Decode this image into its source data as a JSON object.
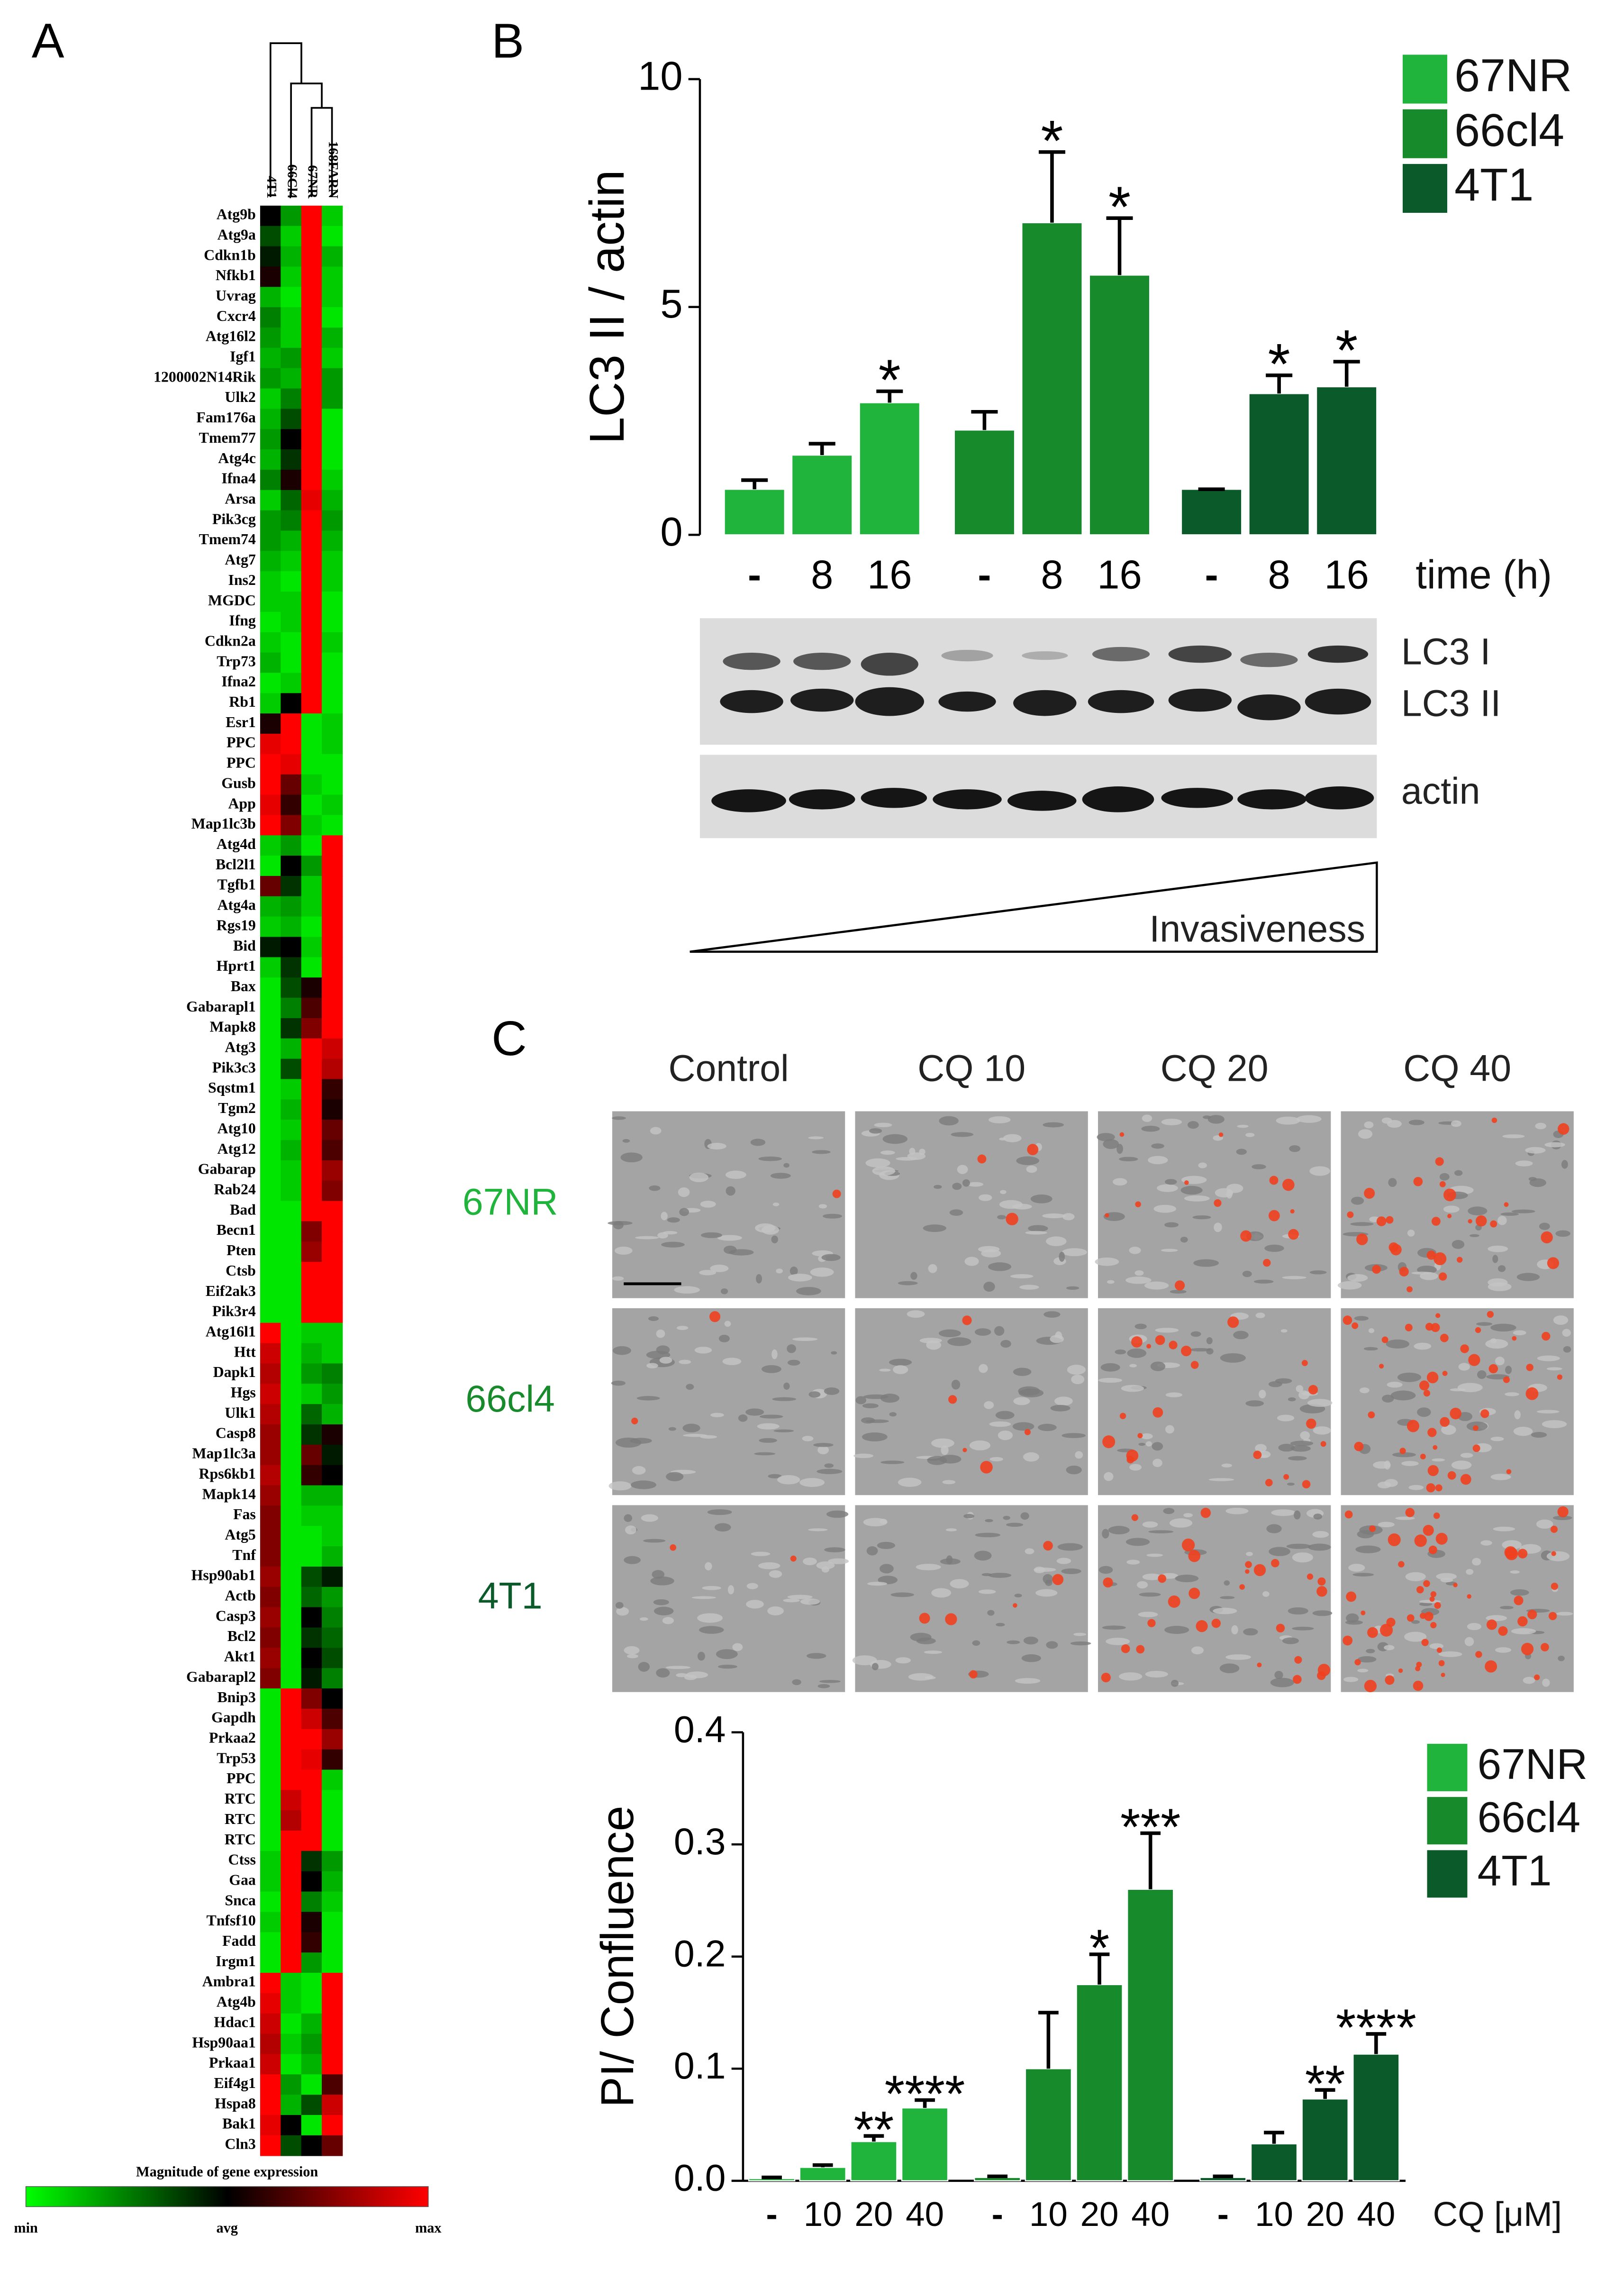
{
  "panel_labels": [
    "A",
    "B",
    "C"
  ],
  "blot": {
    "bands": [
      "LC3 I",
      "LC3 II",
      "actin"
    ],
    "gradient_label": "Invasiveness"
  },
  "micrographs": {
    "columns": [
      "Control",
      "CQ 10",
      "CQ 20",
      "CQ 40"
    ],
    "rows": [
      "67NR",
      "66cl4",
      "4T1"
    ]
  },
  "chart_data": [
    {
      "type": "heatmap",
      "colorbar_title": "Magnitude of gene expression",
      "colorbar_labels": [
        "min",
        "avg",
        "max"
      ],
      "colorscale": [
        "#00ff00",
        "#000000",
        "#ff0000"
      ],
      "zlim": [
        -1,
        1
      ],
      "columns": [
        "4T1",
        "66Cl4",
        "67NR",
        "168FARN"
      ],
      "rows": [
        "Atg9b",
        "Atg9a",
        "Cdkn1b",
        "Nfkb1",
        "Uvrag",
        "Cxcr4",
        "Atg16l2",
        "Igf1",
        "1200002N14Rik",
        "Ulk2",
        "Fam176a",
        "Tmem77",
        "Atg4c",
        "Ifna4",
        "Arsa",
        "Pik3cg",
        "Tmem74",
        "Atg7",
        "Ins2",
        "MGDC",
        "Ifng",
        "Cdkn2a",
        "Trp73",
        "Ifna2",
        "Rb1",
        "Esr1",
        "PPC",
        "PPC",
        "Gusb",
        "App",
        "Map1lc3b",
        "Atg4d",
        "Bcl2l1",
        "Tgfb1",
        "Atg4a",
        "Rgs19",
        "Bid",
        "Hprt1",
        "Bax",
        "Gabarapl1",
        "Mapk8",
        "Atg3",
        "Pik3c3",
        "Sqstm1",
        "Tgm2",
        "Atg10",
        "Atg12",
        "Gabarap",
        "Rab24",
        "Bad",
        "Becn1",
        "Pten",
        "Ctsb",
        "Eif2ak3",
        "Pik3r4",
        "Atg16l1",
        "Htt",
        "Dapk1",
        "Hgs",
        "Ulk1",
        "Casp8",
        "Map1lc3a",
        "Rps6kb1",
        "Mapk14",
        "Fas",
        "Atg5",
        "Tnf",
        "Hsp90ab1",
        "Actb",
        "Casp3",
        "Bcl2",
        "Akt1",
        "Gabarapl2",
        "Bnip3",
        "Gapdh",
        "Prkaa2",
        "Trp53",
        "PPC",
        "RTC",
        "RTC",
        "RTC",
        "Ctss",
        "Gaa",
        "Snca",
        "Tnfsf10",
        "Fadd",
        "Irgm1",
        "Ambra1",
        "Atg4b",
        "Hdac1",
        "Hsp90aa1",
        "Prkaa1",
        "Eif4g1",
        "Hspa8",
        "Bak1",
        "Cln3"
      ],
      "values": [
        [
          0,
          -0.6,
          1,
          -0.8
        ],
        [
          -0.3,
          -0.8,
          1,
          -0.9
        ],
        [
          -0.1,
          -0.7,
          1,
          -0.7
        ],
        [
          0.1,
          -0.8,
          1,
          -0.8
        ],
        [
          -0.7,
          -0.9,
          1,
          -0.8
        ],
        [
          -0.5,
          -0.8,
          1,
          -0.9
        ],
        [
          -0.6,
          -0.8,
          1,
          -0.7
        ],
        [
          -0.7,
          -0.6,
          1,
          -0.8
        ],
        [
          -0.6,
          -0.7,
          1,
          -0.6
        ],
        [
          -0.8,
          -0.5,
          1,
          -0.6
        ],
        [
          -0.7,
          -0.3,
          1,
          -0.9
        ],
        [
          -0.6,
          0,
          1,
          -0.9
        ],
        [
          -0.7,
          -0.2,
          1,
          -0.9
        ],
        [
          -0.5,
          0.1,
          1,
          -0.8
        ],
        [
          -0.8,
          -0.4,
          0.9,
          -0.7
        ],
        [
          -0.6,
          -0.5,
          1,
          -0.6
        ],
        [
          -0.6,
          -0.7,
          1,
          -0.7
        ],
        [
          -0.7,
          -0.8,
          1,
          -0.8
        ],
        [
          -0.8,
          -0.9,
          1,
          -0.8
        ],
        [
          -0.8,
          -0.8,
          1,
          -0.9
        ],
        [
          -0.9,
          -0.8,
          1,
          -0.9
        ],
        [
          -0.8,
          -0.9,
          1,
          -0.8
        ],
        [
          -0.7,
          -0.9,
          1,
          -0.9
        ],
        [
          -0.9,
          -0.8,
          1,
          -0.9
        ],
        [
          -0.8,
          0,
          1,
          -0.9
        ],
        [
          0.1,
          1,
          -0.9,
          -0.8
        ],
        [
          0.9,
          1,
          -0.9,
          -0.8
        ],
        [
          1,
          0.9,
          -0.9,
          -0.9
        ],
        [
          1,
          0.4,
          -0.8,
          -0.9
        ],
        [
          0.9,
          0.2,
          -0.9,
          -0.8
        ],
        [
          1,
          0.5,
          -0.8,
          -0.9
        ],
        [
          -0.8,
          -0.6,
          -0.9,
          1
        ],
        [
          -0.9,
          0,
          -0.6,
          1
        ],
        [
          0.4,
          -0.2,
          -0.8,
          1
        ],
        [
          -0.7,
          -0.6,
          -0.8,
          1
        ],
        [
          -0.8,
          -0.7,
          -0.9,
          1
        ],
        [
          -0.1,
          0,
          -0.8,
          1
        ],
        [
          -0.8,
          -0.2,
          -0.9,
          1
        ],
        [
          -0.9,
          -0.3,
          0.1,
          1
        ],
        [
          -0.9,
          -0.5,
          0.3,
          1
        ],
        [
          -0.9,
          -0.2,
          0.5,
          1
        ],
        [
          -0.9,
          -0.7,
          1,
          0.8
        ],
        [
          -0.9,
          -0.3,
          1,
          0.7
        ],
        [
          -0.9,
          -0.8,
          1,
          0.2
        ],
        [
          -0.9,
          -0.7,
          1,
          0.1
        ],
        [
          -0.9,
          -0.8,
          1,
          0.4
        ],
        [
          -0.9,
          -0.7,
          1,
          0.3
        ],
        [
          -0.9,
          -0.8,
          1,
          0.6
        ],
        [
          -0.9,
          -0.8,
          1,
          0.5
        ],
        [
          -0.9,
          -0.9,
          1,
          1
        ],
        [
          -0.9,
          -0.9,
          0.5,
          1
        ],
        [
          -0.9,
          -0.9,
          0.6,
          1
        ],
        [
          -0.9,
          -0.9,
          1,
          1
        ],
        [
          -0.9,
          -0.9,
          1,
          1
        ],
        [
          -0.9,
          -0.9,
          1,
          1
        ],
        [
          1,
          -0.9,
          -0.8,
          -0.8
        ],
        [
          0.8,
          -0.9,
          -0.7,
          -0.8
        ],
        [
          0.7,
          -0.9,
          -0.6,
          -0.5
        ],
        [
          0.8,
          -0.9,
          -0.8,
          -0.6
        ],
        [
          0.7,
          -0.9,
          -0.4,
          -0.7
        ],
        [
          0.6,
          -0.9,
          -0.2,
          0.1
        ],
        [
          0.6,
          -0.9,
          0.4,
          -0.1
        ],
        [
          0.7,
          -0.9,
          0.2,
          0
        ],
        [
          0.6,
          -0.9,
          -0.7,
          -0.7
        ],
        [
          0.5,
          -0.9,
          -0.8,
          -0.8
        ],
        [
          0.5,
          -0.9,
          -0.9,
          -0.8
        ],
        [
          0.5,
          -0.9,
          -0.9,
          -0.7
        ],
        [
          0.6,
          -0.9,
          -0.3,
          -0.1
        ],
        [
          0.5,
          -0.9,
          -0.4,
          -0.6
        ],
        [
          0.6,
          -0.9,
          0,
          -0.5
        ],
        [
          0.5,
          -0.9,
          -0.2,
          -0.4
        ],
        [
          0.6,
          -0.9,
          0,
          -0.3
        ],
        [
          0.5,
          -0.9,
          -0.1,
          -0.5
        ],
        [
          -0.9,
          1,
          0.5,
          0
        ],
        [
          -0.9,
          1,
          0.8,
          0.3
        ],
        [
          -0.9,
          1,
          1,
          0.6
        ],
        [
          -0.9,
          1,
          0.9,
          0.2
        ],
        [
          -0.9,
          1,
          1,
          -0.8
        ],
        [
          -0.9,
          0.8,
          1,
          -0.9
        ],
        [
          -0.9,
          0.7,
          1,
          -0.9
        ],
        [
          -0.9,
          1,
          1,
          -0.9
        ],
        [
          -0.8,
          1,
          -0.2,
          -0.6
        ],
        [
          -0.8,
          1,
          0,
          -0.7
        ],
        [
          -0.9,
          1,
          -0.5,
          -0.8
        ],
        [
          -0.8,
          1,
          0.1,
          -0.9
        ],
        [
          -0.9,
          1,
          0.2,
          -0.9
        ],
        [
          -0.9,
          1,
          -0.6,
          -0.9
        ],
        [
          1,
          -0.8,
          -0.9,
          1
        ],
        [
          0.9,
          -0.8,
          -0.9,
          1
        ],
        [
          0.8,
          -0.9,
          -0.7,
          1
        ],
        [
          0.7,
          -0.8,
          -0.6,
          1
        ],
        [
          0.8,
          -0.9,
          -0.7,
          1
        ],
        [
          1,
          -0.6,
          -0.9,
          0.3
        ],
        [
          1,
          -0.7,
          -0.3,
          0.8
        ],
        [
          0.9,
          0,
          -0.9,
          1
        ],
        [
          1,
          -0.3,
          0,
          0.4
        ]
      ]
    },
    {
      "type": "bar",
      "ylabel": "LC3 II / actin",
      "xlabel": "time (h)",
      "categories": [
        "-",
        "8",
        "16"
      ],
      "ylim": [
        0,
        10
      ],
      "yticks": [
        0,
        5,
        10
      ],
      "series": [
        {
          "name": "67NR",
          "color": "#21b43c",
          "values": [
            1.0,
            1.75,
            2.9
          ],
          "errors": [
            0.2,
            0.25,
            0.25
          ],
          "significance": [
            null,
            null,
            "*"
          ]
        },
        {
          "name": "66cl4",
          "color": "#178a2c",
          "values": [
            2.3,
            6.85,
            5.7
          ],
          "errors": [
            0.4,
            1.55,
            1.25
          ],
          "significance": [
            null,
            "*",
            "*"
          ]
        },
        {
          "name": "4T1",
          "color": "#0b5a2a",
          "values": [
            1.0,
            3.1,
            3.25
          ],
          "errors": [
            0,
            0.4,
            0.55
          ],
          "significance": [
            null,
            "*",
            "*"
          ]
        }
      ]
    },
    {
      "type": "bar",
      "ylabel": "PI/ Confluence",
      "xlabel": "CQ [μM]",
      "categories": [
        "-",
        "10",
        "20",
        "40"
      ],
      "ylim": [
        0,
        0.4
      ],
      "yticks": [
        {
          "value": 0,
          "label": "0.0"
        },
        0.1,
        0.2,
        0.3,
        0.4
      ],
      "series": [
        {
          "name": "67NR",
          "color": "#21b43c",
          "values": [
            0.002,
            0.012,
            0.035,
            0.065
          ],
          "errors": [
            0.001,
            0.002,
            0.005,
            0.007
          ],
          "significance": [
            null,
            null,
            "**",
            "****"
          ]
        },
        {
          "name": "66cl4",
          "color": "#178a2c",
          "values": [
            0.003,
            0.1,
            0.175,
            0.26
          ],
          "errors": [
            0.001,
            0.05,
            0.027,
            0.05
          ],
          "significance": [
            null,
            null,
            "*",
            "***"
          ]
        },
        {
          "name": "4T1",
          "color": "#0b5a2a",
          "values": [
            0.003,
            0.033,
            0.073,
            0.113
          ],
          "errors": [
            0.001,
            0.01,
            0.008,
            0.018
          ],
          "significance": [
            null,
            null,
            "**",
            "****"
          ]
        }
      ]
    }
  ]
}
